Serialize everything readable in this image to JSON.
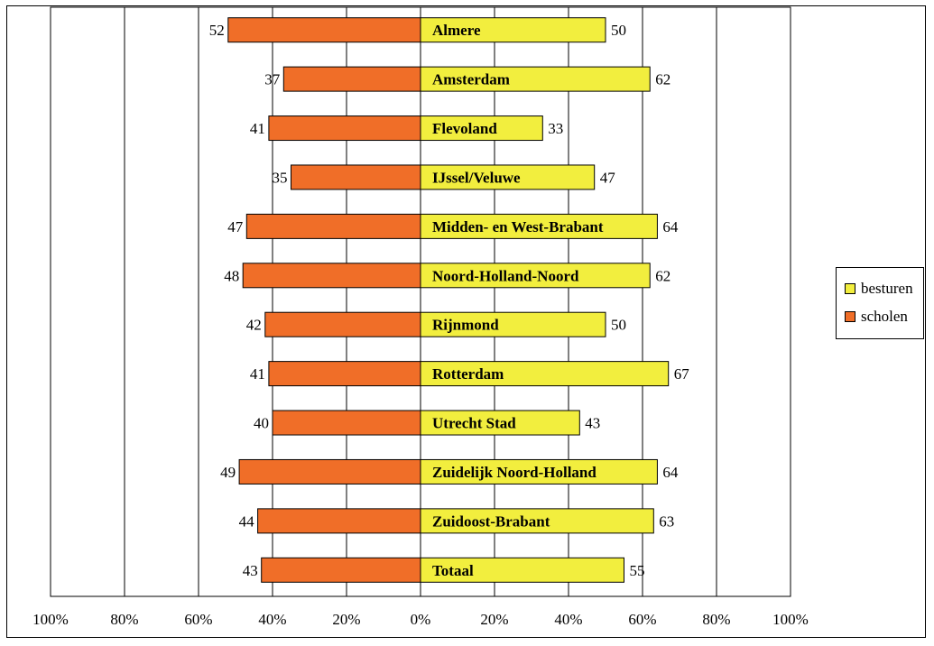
{
  "chart_data": {
    "type": "bar",
    "orientation": "horizontal-diverging",
    "categories": [
      "Almere",
      "Amsterdam",
      "Flevoland",
      "IJssel/Veluwe",
      "Midden- en West-Brabant",
      "Noord-Holland-Noord",
      "Rijnmond",
      "Rotterdam",
      "Utrecht Stad",
      "Zuidelijk Noord-Holland",
      "Zuidoost-Brabant",
      "Totaal"
    ],
    "series": [
      {
        "name": "besturen",
        "color": "#F2EE3E",
        "direction": "right",
        "values": [
          50,
          62,
          33,
          47,
          64,
          62,
          50,
          67,
          43,
          64,
          63,
          55
        ]
      },
      {
        "name": "scholen",
        "color": "#F06E28",
        "direction": "left",
        "values": [
          52,
          37,
          41,
          35,
          47,
          48,
          42,
          41,
          40,
          49,
          44,
          43
        ]
      }
    ],
    "x_ticks": [
      "100%",
      "80%",
      "60%",
      "40%",
      "20%",
      "0%",
      "20%",
      "40%",
      "60%",
      "80%",
      "100%"
    ],
    "xlim": [
      -100,
      100
    ],
    "grid": "vertical",
    "legend": "right",
    "title": "",
    "xlabel": "",
    "ylabel": ""
  }
}
